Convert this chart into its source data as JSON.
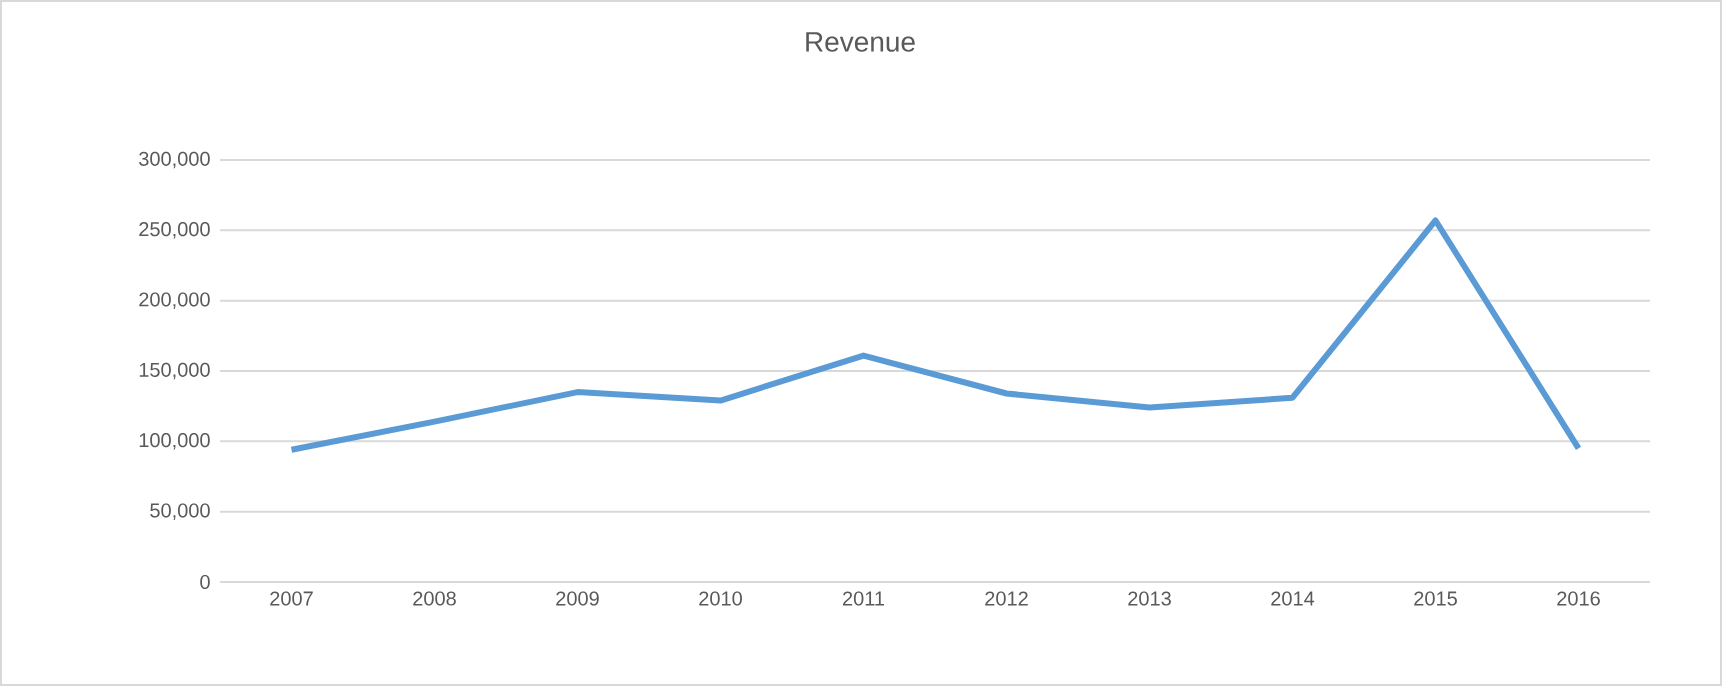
{
  "chart_data": {
    "type": "line",
    "title": "Revenue",
    "categories": [
      "2007",
      "2008",
      "2009",
      "2010",
      "2011",
      "2012",
      "2013",
      "2014",
      "2015",
      "2016"
    ],
    "series": [
      {
        "color": "#5b9bd5",
        "values": [
          94000,
          114000,
          135000,
          129000,
          161000,
          134000,
          124000,
          131000,
          257000,
          95000
        ]
      }
    ],
    "ylim": [
      0,
      300000
    ],
    "yticks": [
      {
        "value": 0,
        "label": "0"
      },
      {
        "value": 50000,
        "label": "50,000"
      },
      {
        "value": 100000,
        "label": "100,000"
      },
      {
        "value": 150000,
        "label": "150,000"
      },
      {
        "value": 200000,
        "label": "200,000"
      },
      {
        "value": 250000,
        "label": "250,000"
      },
      {
        "value": 300000,
        "label": "300,000"
      }
    ],
    "grid": "y",
    "marker": "none",
    "line_style": "solid"
  }
}
